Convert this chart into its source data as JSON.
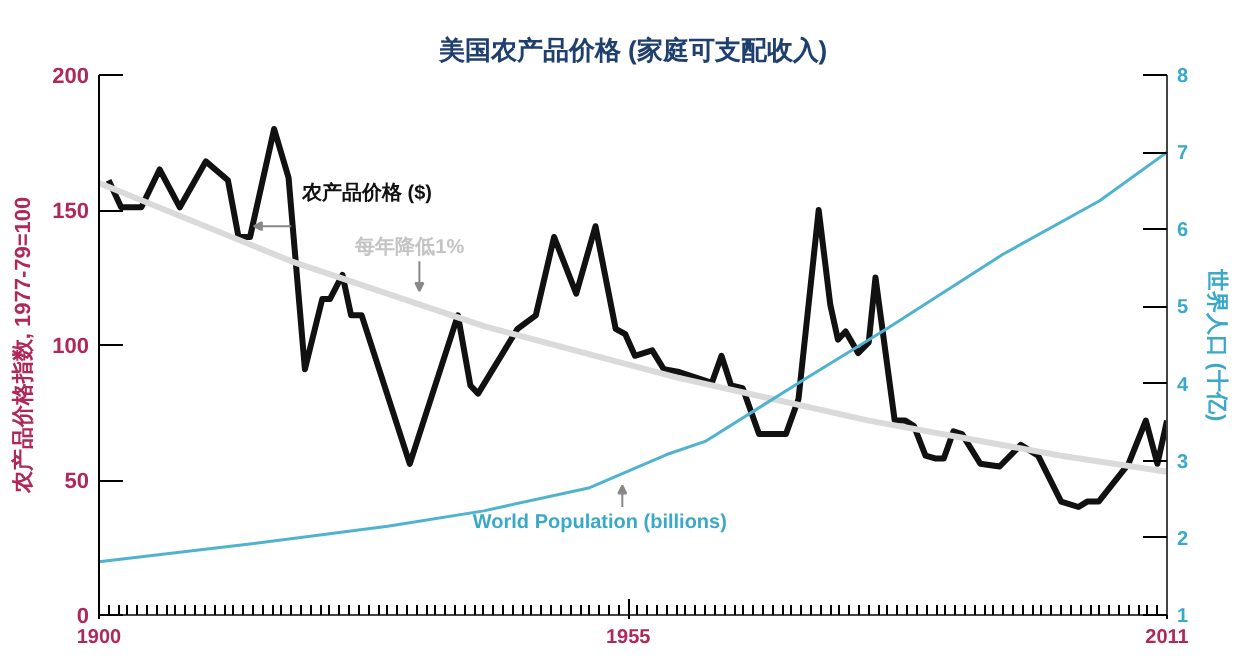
{
  "chart_data": {
    "type": "line",
    "title": "美国农产品价格 (家庭可支配收入)",
    "ylabel": "农产品价格指数, 1977-79=100",
    "y2label": "世界人口 (十亿)",
    "xlim": [
      1900,
      2011
    ],
    "xticks": [
      1900,
      1955,
      2011
    ],
    "ylim": [
      0,
      200
    ],
    "yticks": [
      0,
      50,
      100,
      150,
      200
    ],
    "y2lim": [
      1,
      8
    ],
    "y2ticks": [
      1,
      2,
      3,
      4,
      5,
      6,
      7,
      8
    ],
    "grid": false,
    "series": [
      {
        "name": "农产品价格 ($)",
        "color": "#111111",
        "x": [
          1901,
          1902.3,
          1904.4,
          1906.3,
          1908.4,
          1911.1,
          1913.4,
          1914.5,
          1915.7,
          1918.2,
          1919.7,
          1921.4,
          1923.2,
          1924,
          1925.3,
          1926.2,
          1927.3,
          1932.3,
          1937.3,
          1938.6,
          1939.4,
          1943.5,
          1945.4,
          1947.3,
          1949.6,
          1951.6,
          1953.7,
          1954.7,
          1955.7,
          1957.5,
          1958.7,
          1960.3,
          1963.7,
          1964.7,
          1965.7,
          1966.9,
          1968.6,
          1971.4,
          1972.7,
          1974.8,
          1976,
          1976.8,
          1977.6,
          1978.9,
          1980,
          1980.7,
          1982.7,
          1983.8,
          1984.7,
          1985.9,
          1986.9,
          1987.8,
          1988.8,
          1989.7,
          1991.6,
          1993.6,
          1995.8,
          1997.6,
          2000,
          2001.8,
          2002.7,
          2003.9,
          2007,
          2008.8,
          2010,
          2011
        ],
        "values": [
          161,
          151,
          151,
          165,
          151,
          168,
          161,
          140,
          140,
          180,
          162,
          91,
          117,
          117,
          126,
          111,
          111,
          56,
          111,
          85,
          82,
          106,
          111,
          140,
          119,
          144,
          106,
          104,
          96,
          98,
          91,
          90,
          86,
          96,
          85,
          84,
          67,
          67,
          80,
          150,
          115,
          102,
          105,
          97,
          101,
          125,
          72,
          72,
          70,
          59,
          58,
          58,
          68,
          67,
          56,
          55,
          63,
          59,
          42,
          40,
          42,
          42,
          56,
          72,
          56,
          72
        ]
      },
      {
        "name": "每年降低1%",
        "color": "#dadada",
        "x": [
          1900,
          1920,
          1940,
          1960,
          1980,
          2000,
          2011
        ],
        "values": [
          160,
          131,
          107,
          88,
          72,
          59,
          53
        ]
      },
      {
        "name": "World Population (billions)",
        "color": "#4fb3cf",
        "axis": "y2",
        "x": [
          1900,
          1915,
          1930,
          1940,
          1951,
          1959,
          1963,
          1973,
          1982,
          1994,
          2004,
          2011
        ],
        "values": [
          1.69,
          1.91,
          2.15,
          2.35,
          2.65,
          3.08,
          3.25,
          4.03,
          4.72,
          5.68,
          6.37,
          7.0
        ]
      }
    ]
  }
}
